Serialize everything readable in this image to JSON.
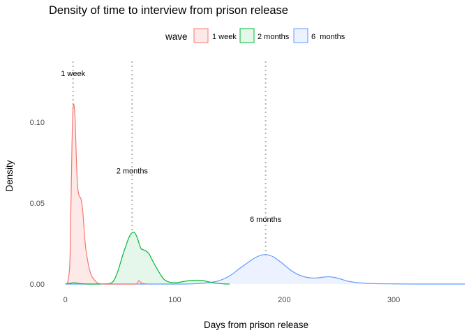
{
  "chart_data": {
    "type": "area",
    "title": "Density of time to interview from prison release",
    "xlabel": "Days from prison release",
    "ylabel": "Density",
    "xlim": [
      -10,
      365
    ],
    "ylim": [
      0,
      0.14
    ],
    "x_ticks": [
      0,
      100,
      200,
      300
    ],
    "x_tick_labels": [
      "0",
      "100",
      "200",
      "300"
    ],
    "y_ticks": [
      0,
      0.05,
      0.1
    ],
    "y_tick_labels": [
      "0.00",
      "0.05",
      "0.10"
    ],
    "grid": false,
    "legend": {
      "title": "wave",
      "position": "top",
      "entries": [
        "1 week",
        "2 months",
        "6  months"
      ]
    },
    "reference_lines": [
      {
        "x": 7,
        "label": "1 week",
        "label_y": 0.13
      },
      {
        "x": 61,
        "label": "2 months",
        "label_y": 0.07
      },
      {
        "x": 183,
        "label": "6 months",
        "label_y": 0.04
      }
    ],
    "series": [
      {
        "name": "1 week",
        "color": "#F8766D",
        "fill": "#FDE9E8",
        "x": [
          0,
          2,
          4,
          5,
          6,
          7,
          8,
          9,
          10,
          11,
          12,
          13,
          14,
          15,
          16,
          17,
          18,
          19,
          20,
          21,
          22,
          24,
          26,
          28,
          30,
          35,
          40,
          45,
          60,
          65,
          67,
          70,
          75
        ],
        "y": [
          0,
          0.001,
          0.012,
          0.045,
          0.085,
          0.108,
          0.11,
          0.1,
          0.078,
          0.062,
          0.056,
          0.054,
          0.053,
          0.05,
          0.044,
          0.035,
          0.026,
          0.02,
          0.016,
          0.012,
          0.009,
          0.005,
          0.003,
          0.0015,
          0.0005,
          0,
          0,
          0,
          0,
          0,
          0.002,
          0.0005,
          0
        ]
      },
      {
        "name": "2 months",
        "color": "#00BA38",
        "fill": "#E5F6EA",
        "x": [
          0,
          8,
          12,
          20,
          30,
          40,
          44,
          48,
          52,
          56,
          59,
          62,
          64,
          66,
          69,
          72,
          76,
          80,
          85,
          90,
          95,
          100,
          105,
          110,
          115,
          120,
          125,
          130,
          135,
          140,
          145,
          150
        ],
        "y": [
          0,
          0.0008,
          0.0004,
          0,
          0,
          0.0003,
          0.002,
          0.008,
          0.017,
          0.025,
          0.03,
          0.032,
          0.031,
          0.028,
          0.022,
          0.021,
          0.019,
          0.014,
          0.008,
          0.003,
          0.0012,
          0.0008,
          0.0012,
          0.0018,
          0.0022,
          0.0024,
          0.0022,
          0.0015,
          0.0008,
          0.0004,
          0.0001,
          0
        ]
      },
      {
        "name": "6  months",
        "color": "#619CFF",
        "fill": "#ECF2FF",
        "x": [
          0,
          100,
          120,
          130,
          140,
          150,
          160,
          170,
          175,
          180,
          185,
          190,
          195,
          200,
          205,
          210,
          215,
          220,
          225,
          230,
          235,
          240,
          245,
          250,
          255,
          260,
          270,
          280,
          300,
          320,
          340,
          365
        ],
        "y": [
          0,
          0,
          0.0003,
          0.0008,
          0.002,
          0.005,
          0.01,
          0.0148,
          0.0168,
          0.018,
          0.018,
          0.0168,
          0.0145,
          0.0118,
          0.009,
          0.0068,
          0.0052,
          0.0042,
          0.0038,
          0.0038,
          0.0042,
          0.0045,
          0.0042,
          0.0034,
          0.0024,
          0.0015,
          0.0007,
          0.0003,
          0.0001,
          0,
          0,
          0
        ]
      }
    ]
  }
}
